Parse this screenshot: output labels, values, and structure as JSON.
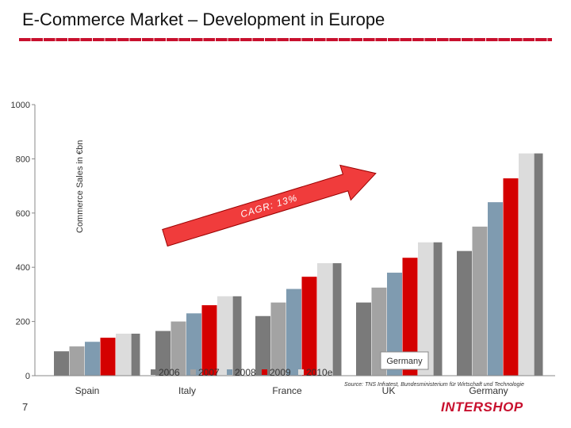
{
  "page": {
    "title": "E-Commerce Market – Development in Europe",
    "page_number": "7"
  },
  "source": "Source: TNS Infratest, Bundesministerium für Wirtschaft und Technologie",
  "logo": {
    "text": "INTERSHOP"
  },
  "annotation": {
    "cagr": "CAGR: 13%",
    "tooltip": "Germany"
  },
  "colors": {
    "accent": "#c8102e",
    "series": [
      "#7a7a7a",
      "#a3a3a3",
      "#7f9bb0",
      "#d40000",
      "#dcdcdc",
      "#7a7a7a"
    ]
  },
  "chart_data": {
    "type": "bar",
    "title": "E-Commerce Market – Development in Europe",
    "xlabel": "",
    "ylabel": "Commerce Sales in €bn",
    "ylim": [
      0,
      1000
    ],
    "yticks": [
      0,
      200,
      400,
      600,
      800,
      1000
    ],
    "grid": false,
    "categories": [
      "Spain",
      "Italy",
      "France",
      "UK",
      "Germany"
    ],
    "series": [
      {
        "name": "2006",
        "values": [
          90,
          165,
          220,
          270,
          460
        ]
      },
      {
        "name": "2007",
        "values": [
          108,
          200,
          270,
          325,
          550
        ]
      },
      {
        "name": "2008",
        "values": [
          125,
          230,
          320,
          380,
          640
        ]
      },
      {
        "name": "2009",
        "values": [
          140,
          260,
          365,
          435,
          728
        ]
      },
      {
        "name": "2010e",
        "values": [
          155,
          293,
          415,
          492,
          820
        ]
      },
      {
        "name": "",
        "values": [
          155,
          293,
          415,
          492,
          820
        ]
      }
    ],
    "legend": [
      "2006",
      "2007",
      "2008",
      "2009",
      "2010e"
    ],
    "legend_position": "bottom"
  }
}
